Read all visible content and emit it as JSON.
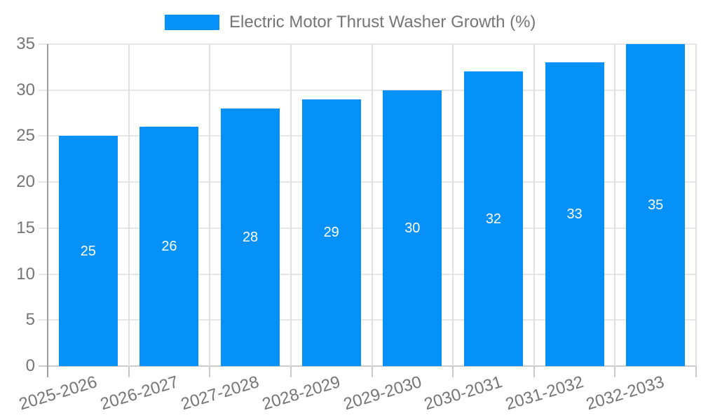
{
  "legend": {
    "label": "Electric Motor Thrust Washer Growth (%)"
  },
  "chart_data": {
    "type": "bar",
    "title": "Electric Motor Thrust Washer Growth (%)",
    "legend": {
      "position": "top",
      "label": "Electric Motor Thrust Washer Growth (%)"
    },
    "categories": [
      "2025-2026",
      "2026-2027",
      "2027-2028",
      "2028-2029",
      "2029-2030",
      "2030-2031",
      "2031-2032",
      "2032-2033"
    ],
    "values": [
      25,
      26,
      28,
      29,
      30,
      32,
      33,
      35
    ],
    "xlabel": "",
    "ylabel": "",
    "ylim": [
      0,
      35
    ],
    "yticks": [
      0,
      5,
      10,
      15,
      20,
      25,
      30,
      35
    ],
    "grid": true,
    "bar_labels_shown": true,
    "colors": {
      "bar": "#0591f8",
      "bar_label": "#ffffff",
      "axis_text": "#757575",
      "h_gridline": "#e6e6e6",
      "v_gridline": "#e0e0e0",
      "baseline": "#cccccc",
      "axis_line": "#9e9e9e",
      "tick": "#c9c9c9"
    }
  }
}
